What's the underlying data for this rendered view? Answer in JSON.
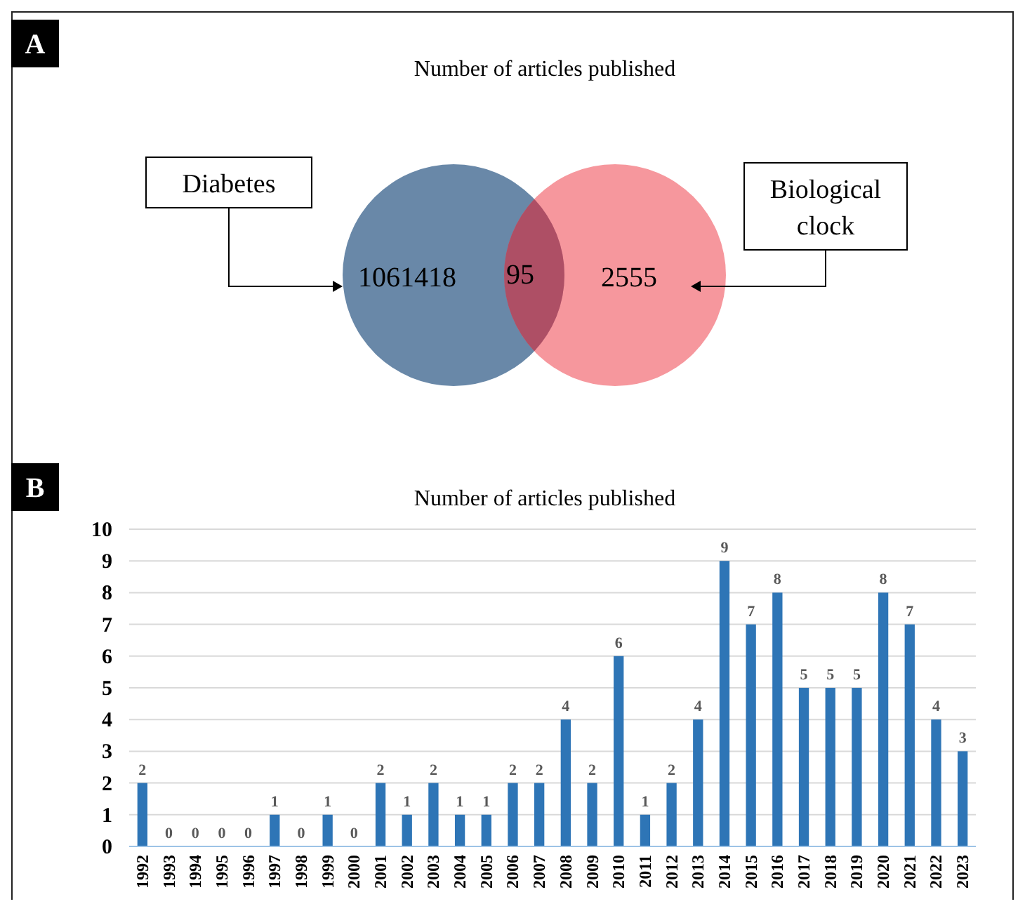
{
  "chart_data": [
    {
      "type": "other",
      "title": "Number of articles published",
      "annotations": [
        "A"
      ],
      "categories": [
        "Diabetes",
        null,
        "Biological clock"
      ],
      "values": [
        1061418,
        95,
        2555
      ],
      "colors": [
        "#4f7399",
        "#a8465e",
        "#f26b74"
      ],
      "data_labels": true
    },
    {
      "type": "bar",
      "title": "Number of articles published",
      "annotations": [
        "B"
      ],
      "categories": [
        "1992",
        "1993",
        "1994",
        "1995",
        "1996",
        "1997",
        "1998",
        "1999",
        "2000",
        "2001",
        "2002",
        "2003",
        "2004",
        "2005",
        "2006",
        "2007",
        "2008",
        "2009",
        "2010",
        "2011",
        "2012",
        "2013",
        "2014",
        "2015",
        "2016",
        "2017",
        "2018",
        "2019",
        "2020",
        "2021",
        "2022",
        "2023"
      ],
      "values": [
        2,
        0,
        0,
        0,
        0,
        1,
        0,
        1,
        0,
        2,
        1,
        2,
        1,
        1,
        2,
        2,
        4,
        2,
        6,
        1,
        2,
        4,
        9,
        7,
        8,
        5,
        5,
        5,
        8,
        7,
        4,
        3
      ],
      "color": "#2e75b6",
      "ylim": [
        0,
        10
      ],
      "yticks": [
        0,
        1,
        2,
        3,
        4,
        5,
        6,
        7,
        8,
        9,
        10
      ],
      "grid": "y",
      "data_labels": true
    }
  ]
}
